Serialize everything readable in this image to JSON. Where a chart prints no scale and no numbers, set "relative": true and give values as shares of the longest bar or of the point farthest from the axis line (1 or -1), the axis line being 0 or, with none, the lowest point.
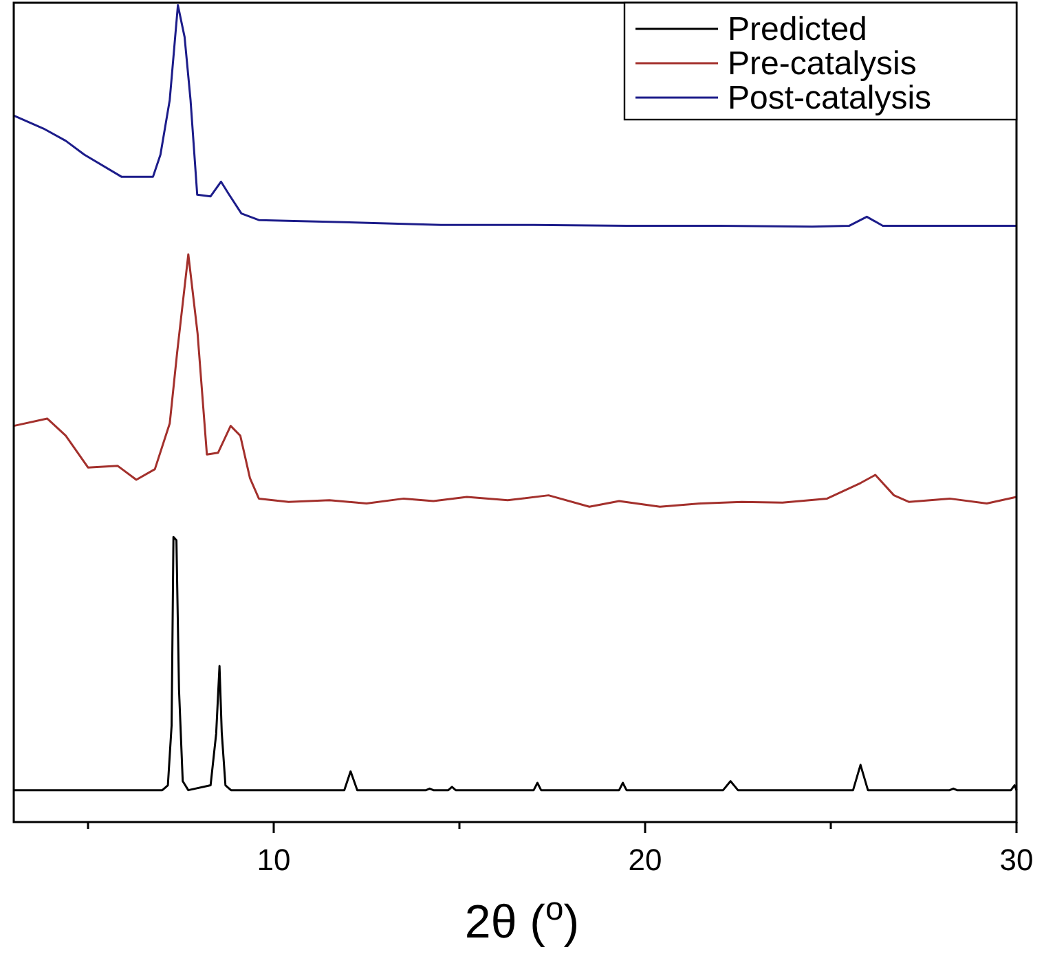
{
  "chart_data": {
    "type": "line",
    "relative": true,
    "xlabel": "2θ ($^{o}$)",
    "xlim": [
      3,
      30
    ],
    "xticks": [
      {
        "value": 5,
        "label": null
      },
      10,
      {
        "value": 15,
        "label": null
      },
      20,
      {
        "value": 25,
        "label": null
      },
      30
    ],
    "legend": "top right",
    "grid": false,
    "marker": "none",
    "line_style": "solid",
    "series": [
      {
        "name": "Predicted",
        "color": "#000000",
        "x": [
          3,
          7.0,
          7.15,
          7.25,
          7.3,
          7.38,
          7.45,
          7.55,
          7.7,
          8.3,
          8.45,
          8.54,
          8.6,
          8.7,
          8.85,
          11.9,
          12.07,
          12.25,
          14.1,
          14.2,
          14.3,
          14.7,
          14.8,
          14.9,
          17.0,
          17.1,
          17.2,
          19.3,
          19.4,
          19.5,
          22.1,
          22.3,
          22.5,
          25.6,
          25.8,
          26.0,
          28.2,
          28.3,
          28.4,
          29.85,
          29.95,
          30
        ],
        "values": [
          0.039,
          0.039,
          0.045,
          0.118,
          0.349,
          0.345,
          0.162,
          0.05,
          0.039,
          0.045,
          0.108,
          0.191,
          0.11,
          0.045,
          0.039,
          0.039,
          0.062,
          0.039,
          0.039,
          0.041,
          0.039,
          0.039,
          0.043,
          0.039,
          0.039,
          0.048,
          0.039,
          0.039,
          0.048,
          0.039,
          0.039,
          0.05,
          0.039,
          0.039,
          0.07,
          0.039,
          0.039,
          0.041,
          0.039,
          0.039,
          0.045,
          0.039
        ]
      },
      {
        "name": "Pre-catalysis",
        "color": "#a3302c",
        "x": [
          3,
          3.9,
          4.4,
          5.0,
          5.8,
          6.3,
          6.8,
          7.2,
          7.4,
          7.7,
          7.95,
          8.2,
          8.5,
          8.84,
          9.1,
          9.36,
          9.6,
          10.4,
          11.5,
          12.5,
          13.5,
          14.3,
          15.2,
          16.3,
          17.4,
          18.5,
          19.3,
          20.4,
          21.5,
          22.6,
          23.7,
          24.9,
          25.8,
          26.2,
          26.7,
          27.1,
          28.2,
          29.2,
          30
        ],
        "values": [
          0.485,
          0.494,
          0.473,
          0.434,
          0.436,
          0.419,
          0.432,
          0.488,
          0.575,
          0.695,
          0.598,
          0.45,
          0.452,
          0.485,
          0.473,
          0.421,
          0.396,
          0.392,
          0.394,
          0.39,
          0.396,
          0.393,
          0.398,
          0.394,
          0.4,
          0.386,
          0.393,
          0.386,
          0.39,
          0.392,
          0.391,
          0.396,
          0.415,
          0.425,
          0.4,
          0.392,
          0.396,
          0.39,
          0.398
        ]
      },
      {
        "name": "Post-catalysis",
        "color": "#1c1c8a",
        "x": [
          3,
          3.8,
          4.4,
          4.9,
          5.9,
          6.75,
          6.95,
          7.2,
          7.42,
          7.6,
          7.76,
          7.94,
          8.3,
          8.58,
          8.8,
          9.13,
          9.6,
          12.2,
          14.5,
          17.0,
          19.5,
          22.0,
          24.5,
          25.5,
          25.97,
          26.4,
          28.0,
          30
        ],
        "values": [
          0.865,
          0.849,
          0.834,
          0.817,
          0.79,
          0.79,
          0.817,
          0.884,
          1.0,
          0.961,
          0.884,
          0.768,
          0.766,
          0.784,
          0.768,
          0.745,
          0.737,
          0.734,
          0.731,
          0.731,
          0.73,
          0.73,
          0.729,
          0.73,
          0.741,
          0.73,
          0.73,
          0.73
        ]
      }
    ]
  }
}
